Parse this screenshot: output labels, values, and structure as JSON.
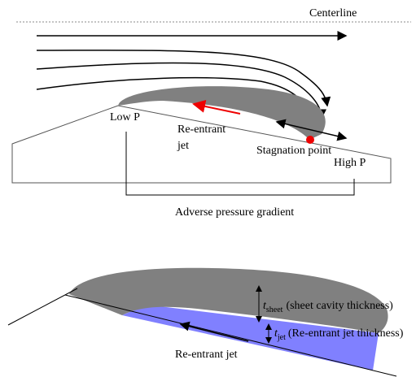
{
  "top_diagram": {
    "centerline": "Centerline",
    "low_pressure": "Low P",
    "reentrant_jet": [
      "Re-entrant",
      "jet"
    ],
    "stagnation_point": "Stagnation point",
    "high_pressure": "High P",
    "gradient": "Adverse pressure gradient"
  },
  "bottom_diagram": {
    "sheet_symbol": "t",
    "sheet_subscript": "sheet",
    "sheet_label": "(sheet cavity thickness)",
    "jet_symbol": "t",
    "jet_subscript": "jet",
    "jet_label": "(Re-entrant jet thickness)",
    "reentrant_jet": "Re-entrant jet"
  }
}
